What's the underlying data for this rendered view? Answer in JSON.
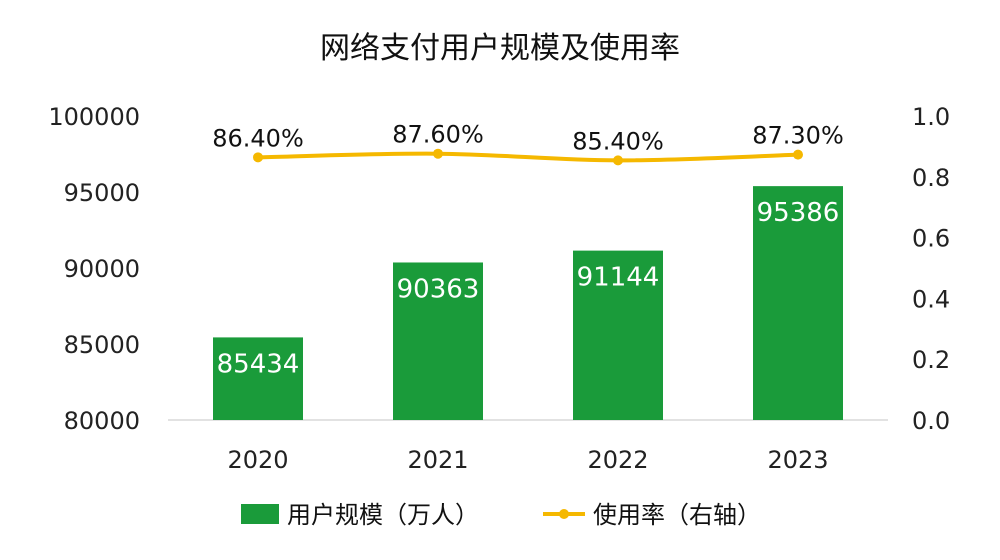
{
  "chart_data": {
    "type": "bar",
    "title": "网络支付用户规模及使用率",
    "categories": [
      "2020",
      "2021",
      "2022",
      "2023"
    ],
    "series": [
      {
        "name": "用户规模（万人）",
        "type": "bar",
        "axis": "left",
        "values": [
          85434,
          90363,
          91144,
          95386
        ],
        "labels": [
          "85434",
          "90363",
          "91144",
          "95386"
        ],
        "color": "#1a9b3a"
      },
      {
        "name": "使用率（右轴）",
        "type": "line",
        "axis": "right",
        "values": [
          0.864,
          0.876,
          0.854,
          0.873
        ],
        "labels": [
          "86.40%",
          "87.60%",
          "85.40%",
          "87.30%"
        ],
        "color": "#f5b800"
      }
    ],
    "y_left": {
      "min": 80000,
      "max": 100000,
      "ticks": [
        80000,
        85000,
        90000,
        95000,
        100000
      ],
      "tick_labels": [
        "80000",
        "85000",
        "90000",
        "95000",
        "100000"
      ]
    },
    "y_right": {
      "min": 0.0,
      "max": 1.0,
      "ticks": [
        0.0,
        0.2,
        0.4,
        0.6,
        0.8,
        1.0
      ],
      "tick_labels": [
        "0.0",
        "0.2",
        "0.4",
        "0.6",
        "0.8",
        "1.0"
      ]
    },
    "grid": false,
    "legend_position": "bottom"
  }
}
